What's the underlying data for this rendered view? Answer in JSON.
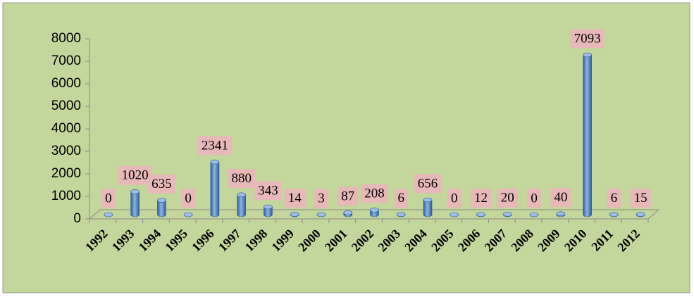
{
  "chart_data": {
    "type": "bar",
    "categories": [
      "1992",
      "1993",
      "1994",
      "1995",
      "1996",
      "1997",
      "1998",
      "1999",
      "2000",
      "2001",
      "2002",
      "2003",
      "2004",
      "2005",
      "2006",
      "2007",
      "2008",
      "2009",
      "2010",
      "2011",
      "2012"
    ],
    "values": [
      0,
      1020,
      635,
      0,
      2341,
      880,
      343,
      14,
      3,
      87,
      208,
      6,
      656,
      0,
      12,
      20,
      0,
      40,
      7093,
      6,
      15
    ],
    "color": "#4f81bd",
    "label_background": "#e6b9b8",
    "background": "#c3d69b",
    "ylim": [
      0,
      8000
    ],
    "yticks": [
      0,
      1000,
      2000,
      3000,
      4000,
      5000,
      6000,
      7000,
      8000
    ],
    "grid": false
  }
}
